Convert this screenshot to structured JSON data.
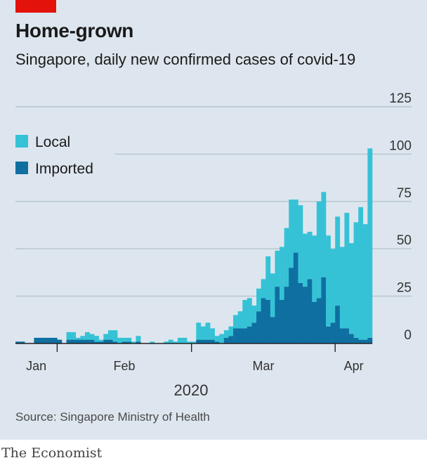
{
  "header": {
    "title": "Home-grown",
    "subtitle": "Singapore, daily new confirmed cases of covid-19"
  },
  "footer": {
    "source": "Source: Singapore Ministry of Health",
    "brand": "The Economist"
  },
  "colors": {
    "local": "#36c2d6",
    "imported": "#0e6fa0",
    "grid": "#b4c3cf",
    "background": "#dde6ee",
    "accent": "#e3120b"
  },
  "chart_data": {
    "type": "bar",
    "stacked": true,
    "x_start": "2020-01-23",
    "x_end": "2020-04-09",
    "ylim": [
      0,
      125
    ],
    "yticks": [
      0,
      25,
      50,
      75,
      100,
      125
    ],
    "grid": true,
    "legend_position": "top-left",
    "x_ticks": [
      {
        "date": "2020-02-01",
        "label": "Jan"
      },
      {
        "date": "2020-03-01",
        "label": "Feb"
      },
      {
        "date": "2020-04-01",
        "label": "Mar"
      },
      {
        "date": "2020-04-09",
        "label": "Apr"
      }
    ],
    "x_tick_marks": [
      "2020-02-01",
      "2020-03-01",
      "2020-04-01"
    ],
    "year_label": "2020",
    "series": [
      {
        "name": "Local",
        "values": [
          0,
          0,
          0,
          0,
          0,
          0,
          0,
          0,
          0,
          0,
          0,
          4,
          4,
          1,
          2,
          4,
          3,
          3,
          1,
          3,
          5,
          6,
          3,
          2,
          2,
          1,
          3,
          0,
          0,
          1,
          0,
          0,
          1,
          2,
          1,
          3,
          3,
          1,
          1,
          9,
          7,
          9,
          6,
          3,
          5,
          4,
          5,
          7,
          9,
          15,
          15,
          9,
          12,
          10,
          23,
          23,
          19,
          28,
          31,
          36,
          28,
          41,
          28,
          25,
          35,
          51,
          45,
          48,
          39,
          47,
          43,
          61,
          48,
          61,
          70,
          61,
          100
        ]
      },
      {
        "name": "Imported",
        "values": [
          1,
          1,
          0,
          0,
          3,
          3,
          3,
          3,
          3,
          2,
          0,
          2,
          2,
          2,
          2,
          2,
          2,
          1,
          1,
          2,
          2,
          1,
          0,
          1,
          1,
          0,
          1,
          0,
          0,
          0,
          0,
          0,
          0,
          0,
          0,
          0,
          0,
          0,
          0,
          2,
          2,
          2,
          2,
          1,
          0,
          3,
          4,
          8,
          8,
          8,
          9,
          11,
          17,
          24,
          23,
          14,
          30,
          23,
          30,
          40,
          48,
          32,
          30,
          34,
          22,
          24,
          35,
          9,
          11,
          20,
          8,
          8,
          5,
          3,
          2,
          2,
          3
        ]
      }
    ]
  }
}
